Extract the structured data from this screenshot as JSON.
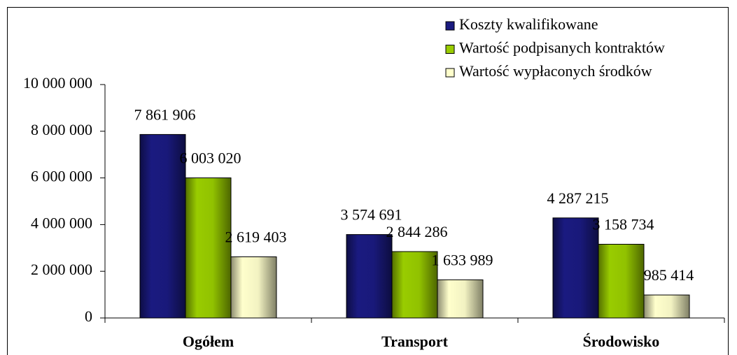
{
  "chart_data": {
    "type": "bar",
    "categories": [
      "Ogółem",
      "Transport",
      "Środowisko"
    ],
    "series": [
      {
        "name": "Koszty kwalifikowane",
        "color": "#1a1a80",
        "values": [
          7861906,
          3574691,
          4287215
        ],
        "value_labels": [
          "7 861 906",
          "3 574 691",
          "4 287 215"
        ]
      },
      {
        "name": "Wartość podpisanych kontraktów",
        "color": "#99cc00",
        "values": [
          6003020,
          2844286,
          3158734
        ],
        "value_labels": [
          "6 003 020",
          "2 844 286",
          "3 158 734"
        ]
      },
      {
        "name": "Wartość wypłaconych środków",
        "color": "#ffffcc",
        "values": [
          2619403,
          1633989,
          985414
        ],
        "value_labels": [
          "2 619 403",
          "1 633 989",
          "985 414"
        ]
      }
    ],
    "ylim": [
      0,
      10000000
    ],
    "yticks": [
      0,
      {
        "value": 2000000,
        "label": "2 000 000"
      },
      {
        "value": 4000000,
        "label": "4 000 000"
      },
      {
        "value": 6000000,
        "label": "6 000 000"
      },
      {
        "value": 8000000,
        "label": "8 000 000"
      },
      {
        "value": 10000000,
        "label": "10 000 000"
      }
    ],
    "legend": "top-right"
  }
}
